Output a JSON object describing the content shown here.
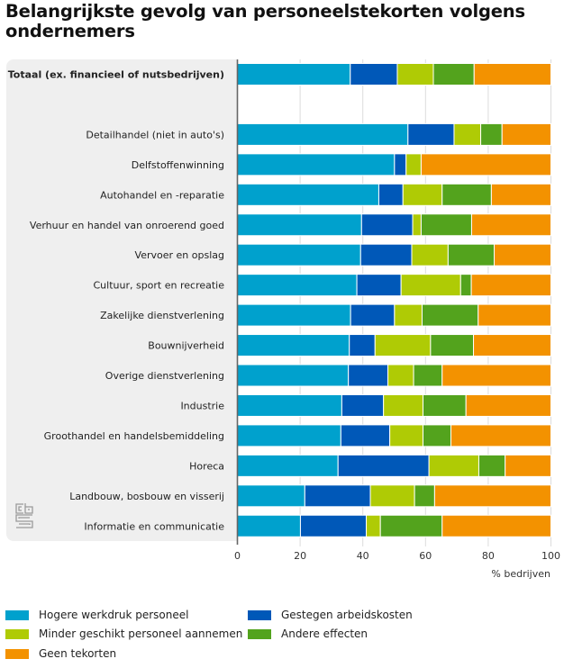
{
  "title": "Belangrijkste gevolg van personeelstekorten volgens ondernemers",
  "chart_data": {
    "type": "bar",
    "orientation": "horizontal",
    "stacked": true,
    "title": "Belangrijkste gevolg van personeelstekorten volgens ondernemers",
    "xlabel": "% bedrijven",
    "ylabel": "",
    "xlim": [
      0,
      100
    ],
    "xticks": [
      0,
      20,
      40,
      60,
      80,
      100
    ],
    "grid": true,
    "legend_position": "bottom",
    "categories": [
      "Totaal (ex. financieel of nutsbedrijven)",
      "",
      "Detailhandel (niet in auto's)",
      "Delfstoffenwinning",
      "Autohandel en -reparatie",
      "Verhuur en handel van onroerend goed",
      "Vervoer en opslag",
      "Cultuur, sport en recreatie",
      "Zakelijke dienstverlening",
      "Bouwnijverheid",
      "Overige dienstverlening",
      "Industrie",
      "Groothandel en handelsbemiddeling",
      "Horeca",
      "Landbouw, bosbouw en visserij",
      "Informatie en communicatie"
    ],
    "bold_categories": [
      "Totaal (ex. financieel of nutsbedrijven)"
    ],
    "series": [
      {
        "name": "Hogere werkdruk personeel",
        "color": "#00a1cd",
        "values": [
          36.0,
          null,
          54.4,
          50.1,
          45.1,
          39.6,
          39.3,
          38.1,
          36.1,
          35.7,
          35.4,
          33.3,
          33.0,
          32.1,
          21.5,
          20.1
        ]
      },
      {
        "name": "Gestegen arbeidskosten",
        "color": "#0058b8",
        "values": [
          15.0,
          null,
          14.7,
          3.7,
          7.7,
          16.3,
          16.3,
          14.1,
          14.0,
          8.2,
          12.6,
          13.3,
          15.6,
          29.0,
          20.9,
          21.0
        ]
      },
      {
        "name": "Minder geschikt personeel aannemen",
        "color": "#afcb05",
        "values": [
          11.5,
          null,
          8.5,
          4.8,
          12.5,
          2.7,
          11.6,
          19.0,
          8.8,
          17.7,
          8.2,
          12.6,
          10.6,
          15.9,
          14.1,
          4.5
        ]
      },
      {
        "name": "Andere effecten",
        "color": "#53a31d",
        "values": [
          13.0,
          null,
          6.8,
          0.0,
          15.7,
          16.1,
          14.7,
          3.4,
          17.9,
          13.7,
          9.1,
          13.7,
          8.9,
          8.4,
          6.4,
          19.7
        ]
      },
      {
        "name": "Geen tekorten",
        "color": "#f39200",
        "values": [
          24.5,
          null,
          15.6,
          41.4,
          19.0,
          25.3,
          18.1,
          25.4,
          23.2,
          24.7,
          34.7,
          27.1,
          31.9,
          14.6,
          37.1,
          34.7
        ]
      }
    ]
  },
  "legend": {
    "items": [
      {
        "label": "Hogere werkdruk personeel",
        "color": "#00a1cd"
      },
      {
        "label": "Gestegen arbeidskosten",
        "color": "#0058b8"
      },
      {
        "label": "Minder geschikt personeel aannemen",
        "color": "#afcb05"
      },
      {
        "label": "Andere effecten",
        "color": "#53a31d"
      },
      {
        "label": "Geen tekorten",
        "color": "#f39200"
      }
    ]
  },
  "logo": {
    "icon": "cbs-logo-icon"
  }
}
